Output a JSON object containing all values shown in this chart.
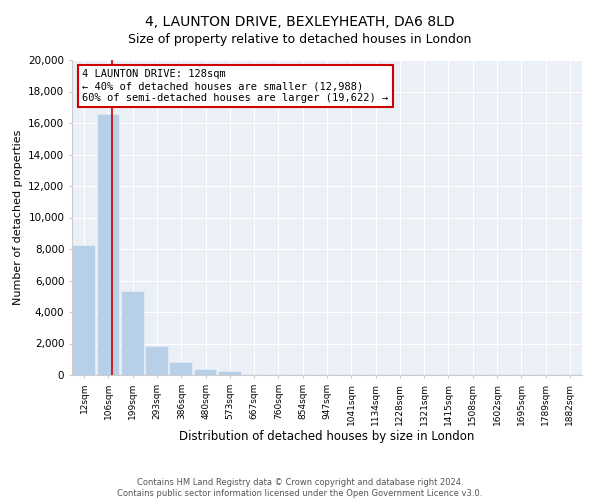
{
  "title": "4, LAUNTON DRIVE, BEXLEYHEATH, DA6 8LD",
  "subtitle": "Size of property relative to detached houses in London",
  "xlabel": "Distribution of detached houses by size in London",
  "ylabel": "Number of detached properties",
  "bar_labels": [
    "12sqm",
    "106sqm",
    "199sqm",
    "293sqm",
    "386sqm",
    "480sqm",
    "573sqm",
    "667sqm",
    "760sqm",
    "854sqm",
    "947sqm",
    "1041sqm",
    "1134sqm",
    "1228sqm",
    "1321sqm",
    "1415sqm",
    "1508sqm",
    "1602sqm",
    "1695sqm",
    "1789sqm",
    "1882sqm"
  ],
  "bar_heights": [
    8200,
    16500,
    5300,
    1750,
    750,
    300,
    200,
    0,
    0,
    0,
    0,
    0,
    0,
    0,
    0,
    0,
    0,
    0,
    0,
    0,
    0
  ],
  "bar_color": "#b8cfe8",
  "ylim": [
    0,
    20000
  ],
  "yticks": [
    0,
    2000,
    4000,
    6000,
    8000,
    10000,
    12000,
    14000,
    16000,
    18000,
    20000
  ],
  "annotation_title": "4 LAUNTON DRIVE: 128sqm",
  "annotation_line1": "← 40% of detached houses are smaller (12,988)",
  "annotation_line2": "60% of semi-detached houses are larger (19,622) →",
  "annotation_box_color": "#ffffff",
  "annotation_box_edge": "#cc0000",
  "property_line_color": "#cc0000",
  "property_line_bar_index": 1,
  "footer1": "Contains HM Land Registry data © Crown copyright and database right 2024.",
  "footer2": "Contains public sector information licensed under the Open Government Licence v3.0.",
  "background_color": "#eaf0f6",
  "grid_color": "#ffffff",
  "title_fontsize": 10,
  "subtitle_fontsize": 9
}
